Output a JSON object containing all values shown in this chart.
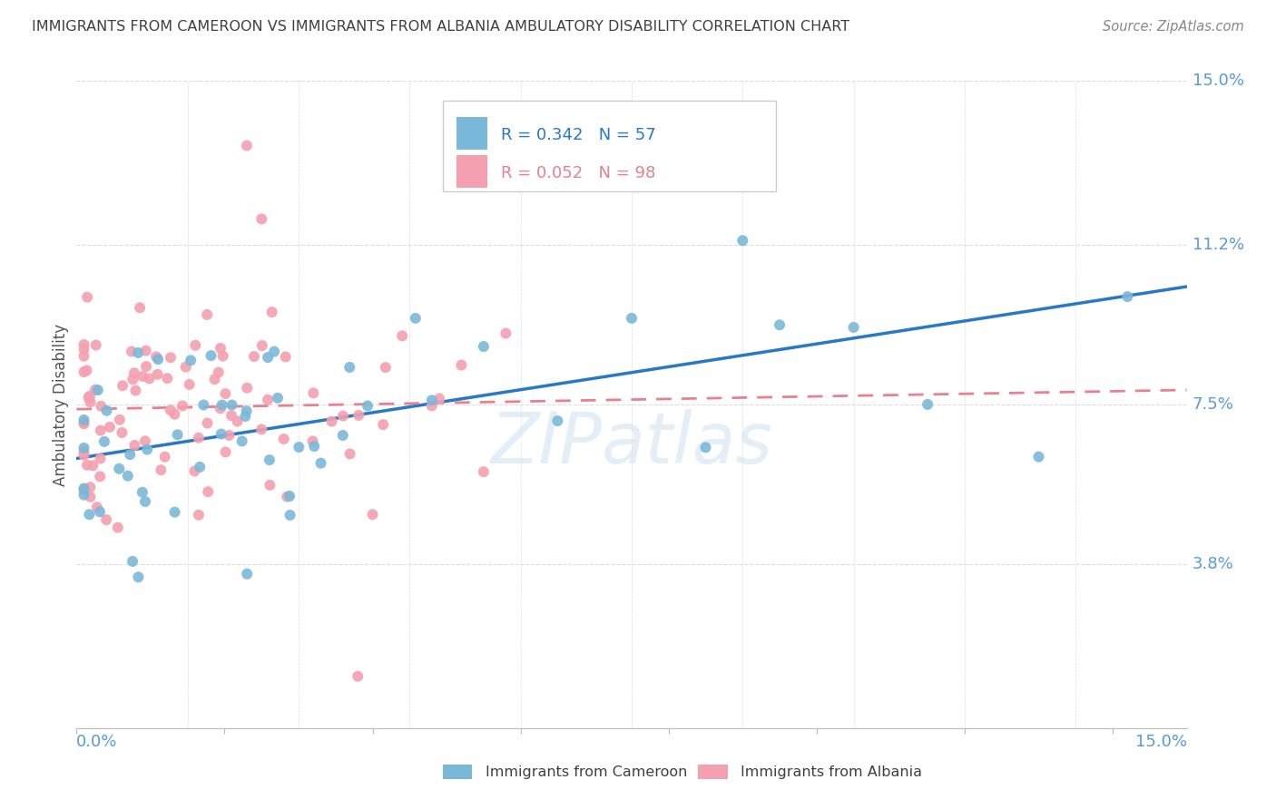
{
  "title": "IMMIGRANTS FROM CAMEROON VS IMMIGRANTS FROM ALBANIA AMBULATORY DISABILITY CORRELATION CHART",
  "source": "Source: ZipAtlas.com",
  "ylabel": "Ambulatory Disability",
  "xlim": [
    0.0,
    0.15
  ],
  "ylim": [
    0.0,
    0.15
  ],
  "ytick_labels": [
    "3.8%",
    "7.5%",
    "11.2%",
    "15.0%"
  ],
  "ytick_values": [
    0.038,
    0.075,
    0.112,
    0.15
  ],
  "cameroon_color": "#7ab8d9",
  "albania_color": "#f4a0b0",
  "cameroon_line_color": "#2878c8",
  "albania_line_color": "#e8808e",
  "cameroon_R": 0.342,
  "cameroon_N": 57,
  "albania_R": 0.052,
  "albania_N": 98,
  "background_color": "#ffffff",
  "grid_color": "#dddddd",
  "axis_label_color": "#5b9bd5",
  "title_color": "#404040",
  "legend_border_color": "#cccccc",
  "watermark_color": "#cce0f0"
}
